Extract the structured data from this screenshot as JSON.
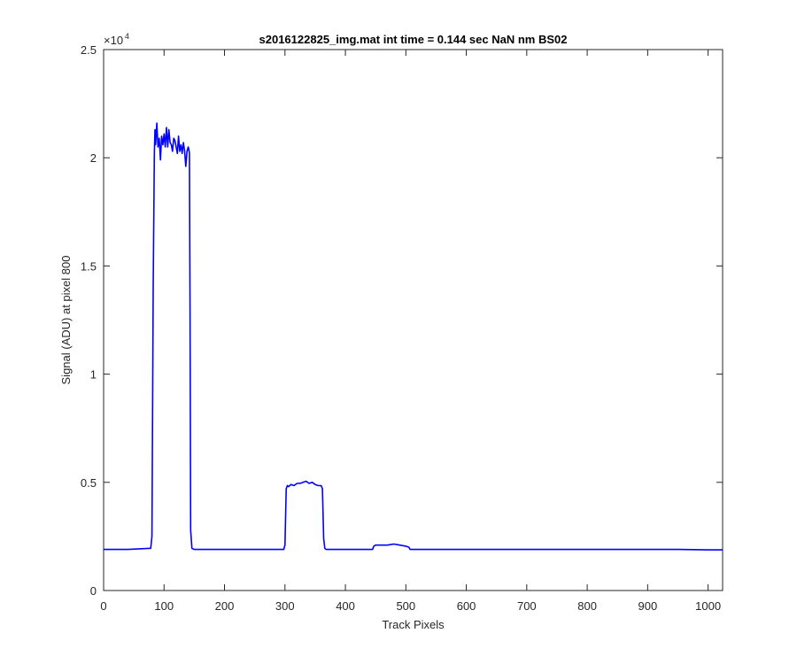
{
  "chart_data": {
    "type": "line",
    "title": "s2016122825_img.mat int time = 0.144 sec  NaN nm BS02",
    "xlabel": "Track Pixels",
    "ylabel": "Signal (ADU) at pixel 800",
    "xlim": [
      0,
      1024
    ],
    "ylim": [
      0,
      25000
    ],
    "x_ticks": [
      0,
      100,
      200,
      300,
      400,
      500,
      600,
      700,
      800,
      900,
      1000
    ],
    "x_tick_labels": [
      "0",
      "100",
      "200",
      "300",
      "400",
      "500",
      "600",
      "700",
      "800",
      "900",
      "1000"
    ],
    "y_ticks": [
      0,
      5000,
      10000,
      15000,
      20000,
      25000
    ],
    "y_tick_labels": [
      "0",
      "0.5",
      "1",
      "1.5",
      "2",
      "2.5"
    ],
    "y_exponent_base": "×10",
    "y_exponent_power": "4",
    "grid": false,
    "series": [
      {
        "color": "#0000ff",
        "x": [
          0,
          40,
          78,
          80,
          82,
          84,
          85,
          86,
          88,
          90,
          92,
          94,
          96,
          98,
          100,
          102,
          104,
          106,
          108,
          110,
          112,
          114,
          116,
          118,
          120,
          122,
          124,
          126,
          128,
          130,
          132,
          134,
          136,
          138,
          140,
          141,
          142,
          143,
          144,
          146,
          150,
          200,
          250,
          298,
          300,
          302,
          304,
          306,
          310,
          315,
          320,
          325,
          330,
          335,
          340,
          345,
          350,
          355,
          360,
          362,
          364,
          366,
          368,
          380,
          420,
          445,
          447,
          450,
          460,
          470,
          480,
          490,
          500,
          505,
          507,
          510,
          550,
          600,
          650,
          700,
          750,
          800,
          850,
          900,
          950,
          1000,
          1024
        ],
        "y": [
          1900,
          1900,
          1950,
          2500,
          14000,
          20200,
          21300,
          20600,
          21600,
          20500,
          20900,
          19900,
          21000,
          20600,
          21100,
          20500,
          21400,
          20500,
          21300,
          20700,
          20600,
          20300,
          20900,
          20800,
          20500,
          20200,
          21000,
          20300,
          20600,
          20200,
          20700,
          20300,
          19600,
          20300,
          20500,
          20400,
          20200,
          13000,
          2800,
          1950,
          1900,
          1900,
          1900,
          1900,
          2100,
          4700,
          4850,
          4800,
          4900,
          4850,
          4950,
          4950,
          5000,
          5050,
          4950,
          5000,
          4900,
          4850,
          4850,
          4700,
          2400,
          1950,
          1900,
          1900,
          1900,
          1900,
          2050,
          2100,
          2100,
          2100,
          2150,
          2100,
          2050,
          2000,
          1900,
          1900,
          1900,
          1900,
          1900,
          1900,
          1900,
          1900,
          1900,
          1900,
          1900,
          1880,
          1880
        ]
      }
    ]
  }
}
